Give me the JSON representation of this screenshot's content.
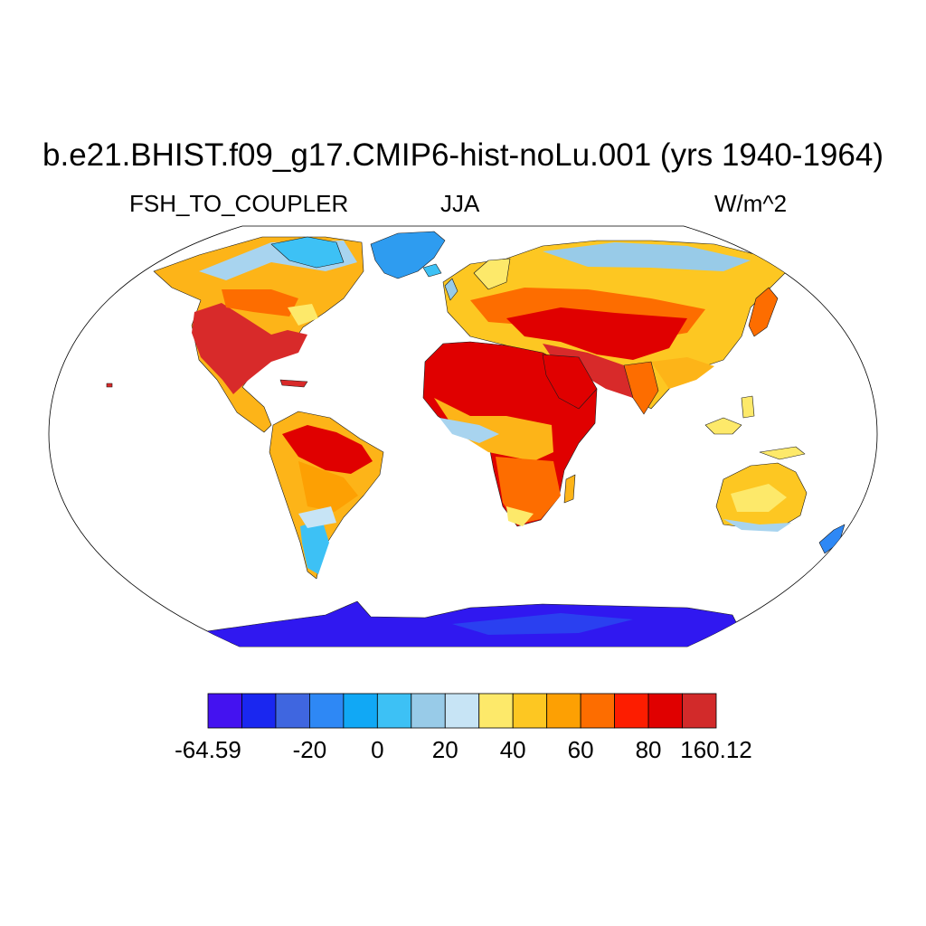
{
  "title": "b.e21.BHIST.f09_g17.CMIP6-hist-noLu.001 (yrs 1940-1964)",
  "variable": "FSH_TO_COUPLER",
  "season": "JJA",
  "units": "W/m^2",
  "colorbar": {
    "colors": [
      "#4412f0",
      "#1a27f0",
      "#3f66e0",
      "#2e88f5",
      "#11a8f5",
      "#3dc1f5",
      "#98cbe8",
      "#c7e4f5",
      "#fde96a",
      "#fdc722",
      "#fda003",
      "#fd6d00",
      "#fd1d00",
      "#e00000",
      "#d22a2a"
    ],
    "labels": [
      {
        "text": "-64.59",
        "index": 0
      },
      {
        "text": "-20",
        "index": 3
      },
      {
        "text": "0",
        "index": 5
      },
      {
        "text": "20",
        "index": 7
      },
      {
        "text": "40",
        "index": 9
      },
      {
        "text": "60",
        "index": 11
      },
      {
        "text": "80",
        "index": 13
      },
      {
        "text": "160.12",
        "index": 15
      }
    ]
  }
}
